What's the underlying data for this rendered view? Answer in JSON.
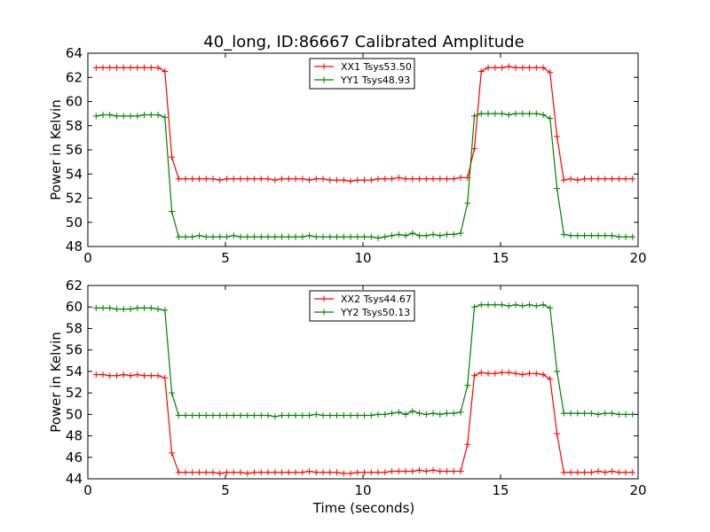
{
  "title": "40_long, ID:86667 Calibrated Amplitude",
  "xlabel": "Time (seconds)",
  "colors": {
    "red": "#ff0000",
    "green": "#008000"
  },
  "chart_data": [
    {
      "type": "line",
      "title": "40_long, ID:86667 Calibrated Amplitude",
      "ylabel": "Power in Kelvin",
      "xlabel": "",
      "xlim": [
        0,
        20
      ],
      "ylim": [
        48,
        64
      ],
      "xticks": [
        "0",
        "5",
        "10",
        "15",
        "20"
      ],
      "yticks": [
        "48",
        "50",
        "52",
        "54",
        "56",
        "58",
        "60",
        "62",
        "64"
      ],
      "legend_position": "top-center",
      "grid": false,
      "series": [
        {
          "name": "XX1 Tsys53.50",
          "color": "#ff0000",
          "x": [
            0.3,
            0.55,
            0.8,
            1.05,
            1.3,
            1.55,
            1.8,
            2.05,
            2.3,
            2.55,
            2.8,
            3.05,
            3.3,
            3.55,
            3.8,
            4.05,
            4.3,
            4.55,
            4.8,
            5.05,
            5.3,
            5.55,
            5.8,
            6.05,
            6.3,
            6.55,
            6.8,
            7.05,
            7.3,
            7.55,
            7.8,
            8.05,
            8.3,
            8.55,
            8.8,
            9.05,
            9.3,
            9.55,
            9.8,
            10.05,
            10.3,
            10.55,
            10.8,
            11.05,
            11.3,
            11.55,
            11.8,
            12.05,
            12.3,
            12.55,
            12.8,
            13.05,
            13.3,
            13.55,
            13.8,
            14.05,
            14.3,
            14.55,
            14.8,
            15.05,
            15.3,
            15.55,
            15.8,
            16.05,
            16.3,
            16.55,
            16.8,
            17.05,
            17.3,
            17.55,
            17.8,
            18.05,
            18.3,
            18.55,
            18.8,
            19.05,
            19.3,
            19.55,
            19.8
          ],
          "y": [
            62.8,
            62.8,
            62.8,
            62.8,
            62.8,
            62.8,
            62.8,
            62.8,
            62.8,
            62.8,
            62.5,
            55.4,
            53.6,
            53.6,
            53.6,
            53.6,
            53.6,
            53.6,
            53.5,
            53.6,
            53.6,
            53.6,
            53.6,
            53.6,
            53.6,
            53.6,
            53.5,
            53.6,
            53.6,
            53.6,
            53.6,
            53.5,
            53.6,
            53.6,
            53.5,
            53.5,
            53.5,
            53.4,
            53.5,
            53.5,
            53.5,
            53.6,
            53.6,
            53.6,
            53.7,
            53.6,
            53.6,
            53.6,
            53.6,
            53.6,
            53.6,
            53.6,
            53.6,
            53.7,
            53.7,
            56.1,
            62.5,
            62.8,
            62.8,
            62.8,
            62.9,
            62.8,
            62.8,
            62.8,
            62.8,
            62.8,
            62.4,
            57.1,
            53.5,
            53.6,
            53.5,
            53.6,
            53.6,
            53.6,
            53.6,
            53.6,
            53.6,
            53.6,
            53.6
          ]
        },
        {
          "name": "YY1 Tsys48.93",
          "color": "#008000",
          "x": [
            0.3,
            0.55,
            0.8,
            1.05,
            1.3,
            1.55,
            1.8,
            2.05,
            2.3,
            2.55,
            2.8,
            3.05,
            3.3,
            3.55,
            3.8,
            4.05,
            4.3,
            4.55,
            4.8,
            5.05,
            5.3,
            5.55,
            5.8,
            6.05,
            6.3,
            6.55,
            6.8,
            7.05,
            7.3,
            7.55,
            7.8,
            8.05,
            8.3,
            8.55,
            8.8,
            9.05,
            9.3,
            9.55,
            9.8,
            10.05,
            10.3,
            10.55,
            10.8,
            11.05,
            11.3,
            11.55,
            11.8,
            12.05,
            12.3,
            12.55,
            12.8,
            13.05,
            13.3,
            13.55,
            13.8,
            14.05,
            14.3,
            14.55,
            14.8,
            15.05,
            15.3,
            15.55,
            15.8,
            16.05,
            16.3,
            16.55,
            16.8,
            17.05,
            17.3,
            17.55,
            17.8,
            18.05,
            18.3,
            18.55,
            18.8,
            19.05,
            19.3,
            19.55,
            19.8
          ],
          "y": [
            58.8,
            58.9,
            58.9,
            58.8,
            58.8,
            58.8,
            58.8,
            58.9,
            58.9,
            58.9,
            58.7,
            50.9,
            48.8,
            48.8,
            48.8,
            48.9,
            48.8,
            48.8,
            48.8,
            48.8,
            48.9,
            48.8,
            48.8,
            48.8,
            48.8,
            48.8,
            48.8,
            48.8,
            48.8,
            48.8,
            48.8,
            48.9,
            48.8,
            48.8,
            48.8,
            48.8,
            48.8,
            48.8,
            48.8,
            48.8,
            48.8,
            48.7,
            48.8,
            48.9,
            49.0,
            48.9,
            49.1,
            48.9,
            48.9,
            49.0,
            48.9,
            49.0,
            49.0,
            49.1,
            51.6,
            58.8,
            59.0,
            59.0,
            59.0,
            59.0,
            58.9,
            59.0,
            59.0,
            59.0,
            59.0,
            58.9,
            58.6,
            52.8,
            49.0,
            48.9,
            48.9,
            48.9,
            48.9,
            48.9,
            48.9,
            48.9,
            48.8,
            48.8,
            48.8
          ]
        }
      ]
    },
    {
      "type": "line",
      "title": "",
      "ylabel": "Power in Kelvin",
      "xlabel": "Time (seconds)",
      "xlim": [
        0,
        20
      ],
      "ylim": [
        44,
        62
      ],
      "xticks": [
        "0",
        "5",
        "10",
        "15",
        "20"
      ],
      "yticks": [
        "44",
        "46",
        "48",
        "50",
        "52",
        "54",
        "56",
        "58",
        "60",
        "62"
      ],
      "legend_position": "top-center",
      "grid": false,
      "series": [
        {
          "name": "XX2 Tsys44.67",
          "color": "#ff0000",
          "x": [
            0.3,
            0.55,
            0.8,
            1.05,
            1.3,
            1.55,
            1.8,
            2.05,
            2.3,
            2.55,
            2.8,
            3.05,
            3.3,
            3.55,
            3.8,
            4.05,
            4.3,
            4.55,
            4.8,
            5.05,
            5.3,
            5.55,
            5.8,
            6.05,
            6.3,
            6.55,
            6.8,
            7.05,
            7.3,
            7.55,
            7.8,
            8.05,
            8.3,
            8.55,
            8.8,
            9.05,
            9.3,
            9.55,
            9.8,
            10.05,
            10.3,
            10.55,
            10.8,
            11.05,
            11.3,
            11.55,
            11.8,
            12.05,
            12.3,
            12.55,
            12.8,
            13.05,
            13.3,
            13.55,
            13.8,
            14.05,
            14.3,
            14.55,
            14.8,
            15.05,
            15.3,
            15.55,
            15.8,
            16.05,
            16.3,
            16.55,
            16.8,
            17.05,
            17.3,
            17.55,
            17.8,
            18.05,
            18.3,
            18.55,
            18.8,
            19.05,
            19.3,
            19.55,
            19.8
          ],
          "y": [
            53.7,
            53.7,
            53.6,
            53.6,
            53.7,
            53.6,
            53.7,
            53.6,
            53.6,
            53.6,
            53.4,
            46.4,
            44.6,
            44.6,
            44.6,
            44.6,
            44.6,
            44.6,
            44.5,
            44.6,
            44.6,
            44.6,
            44.5,
            44.6,
            44.6,
            44.6,
            44.6,
            44.6,
            44.6,
            44.6,
            44.6,
            44.7,
            44.6,
            44.6,
            44.6,
            44.6,
            44.5,
            44.5,
            44.6,
            44.6,
            44.6,
            44.6,
            44.6,
            44.7,
            44.7,
            44.7,
            44.7,
            44.8,
            44.7,
            44.8,
            44.7,
            44.7,
            44.7,
            44.7,
            47.2,
            53.6,
            53.9,
            53.8,
            53.8,
            53.9,
            53.9,
            53.8,
            53.7,
            53.8,
            53.8,
            53.7,
            53.3,
            48.2,
            44.6,
            44.6,
            44.6,
            44.6,
            44.6,
            44.7,
            44.6,
            44.7,
            44.6,
            44.6,
            44.6
          ]
        },
        {
          "name": "YY2 Tsys50.13",
          "color": "#008000",
          "x": [
            0.3,
            0.55,
            0.8,
            1.05,
            1.3,
            1.55,
            1.8,
            2.05,
            2.3,
            2.55,
            2.8,
            3.05,
            3.3,
            3.55,
            3.8,
            4.05,
            4.3,
            4.55,
            4.8,
            5.05,
            5.3,
            5.55,
            5.8,
            6.05,
            6.3,
            6.55,
            6.8,
            7.05,
            7.3,
            7.55,
            7.8,
            8.05,
            8.3,
            8.55,
            8.8,
            9.05,
            9.3,
            9.55,
            9.8,
            10.05,
            10.3,
            10.55,
            10.8,
            11.05,
            11.3,
            11.55,
            11.8,
            12.05,
            12.3,
            12.55,
            12.8,
            13.05,
            13.3,
            13.55,
            13.8,
            14.05,
            14.3,
            14.55,
            14.8,
            15.05,
            15.3,
            15.55,
            15.8,
            16.05,
            16.3,
            16.55,
            16.8,
            17.05,
            17.3,
            17.55,
            17.8,
            18.05,
            18.3,
            18.55,
            18.8,
            19.05,
            19.3,
            19.55,
            19.8
          ],
          "y": [
            59.9,
            59.9,
            59.9,
            59.8,
            59.8,
            59.8,
            59.9,
            59.9,
            59.9,
            59.8,
            59.7,
            52.0,
            49.9,
            49.9,
            49.9,
            49.9,
            49.9,
            49.9,
            49.9,
            49.9,
            49.9,
            49.9,
            49.9,
            49.9,
            49.9,
            49.9,
            49.8,
            49.9,
            49.9,
            49.9,
            49.9,
            49.9,
            50.0,
            49.9,
            49.9,
            49.9,
            49.9,
            49.9,
            49.9,
            49.9,
            49.9,
            50.0,
            50.0,
            50.1,
            50.2,
            50.0,
            50.3,
            50.1,
            50.0,
            50.1,
            50.0,
            50.1,
            50.1,
            50.2,
            52.7,
            60.0,
            60.2,
            60.2,
            60.2,
            60.2,
            60.1,
            60.2,
            60.1,
            60.2,
            60.1,
            60.2,
            59.9,
            54.0,
            50.1,
            50.1,
            50.1,
            50.1,
            50.1,
            50.0,
            50.1,
            50.1,
            50.0,
            50.0,
            50.0
          ]
        }
      ]
    }
  ]
}
